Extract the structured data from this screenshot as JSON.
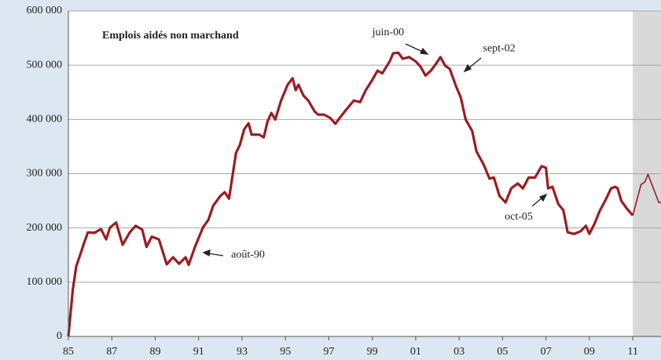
{
  "chart_data": {
    "type": "line",
    "title": "Emplois aidés non marchand",
    "xlim": [
      1985,
      2012.3
    ],
    "ylim": [
      0,
      600000
    ],
    "xticks": [
      {
        "value": 1985,
        "label": "85"
      },
      {
        "value": 1987,
        "label": "87"
      },
      {
        "value": 1989,
        "label": "89"
      },
      {
        "value": 1991,
        "label": "91"
      },
      {
        "value": 1993,
        "label": "93"
      },
      {
        "value": 1995,
        "label": "95"
      },
      {
        "value": 1997,
        "label": "97"
      },
      {
        "value": 1999,
        "label": "99"
      },
      {
        "value": 2001,
        "label": "01"
      },
      {
        "value": 2003,
        "label": "03"
      },
      {
        "value": 2005,
        "label": "05"
      },
      {
        "value": 2007,
        "label": "07"
      },
      {
        "value": 2009,
        "label": "09"
      },
      {
        "value": 2011,
        "label": "11"
      }
    ],
    "yticks": [
      0,
      {
        "value": 100000,
        "label": "100 000"
      },
      {
        "value": 200000,
        "label": "200 000"
      },
      {
        "value": 300000,
        "label": "300 000"
      },
      {
        "value": 400000,
        "label": "400 000"
      },
      {
        "value": 500000,
        "label": "500 000"
      },
      {
        "value": 600000,
        "label": "600 000"
      }
    ],
    "grid": true,
    "shaded_xrange": [
      2011,
      2012.3
    ],
    "shaded_color": "#d9d9d9",
    "series": [
      {
        "color": "#9b1c22",
        "width": 3.2,
        "x": [
          1985.0,
          1985.2,
          1985.36,
          1985.54,
          1985.72,
          1985.9,
          1986.2,
          1986.5,
          1986.74,
          1986.92,
          1987.2,
          1987.5,
          1987.83,
          1988.1,
          1988.4,
          1988.6,
          1988.84,
          1989.17,
          1989.53,
          1989.82,
          1990.1,
          1990.4,
          1990.54,
          1990.83,
          1991.2,
          1991.45,
          1991.67,
          1992.0,
          1992.2,
          1992.4,
          1992.72,
          1992.9,
          1993.1,
          1993.3,
          1993.44,
          1993.8,
          1994.0,
          1994.17,
          1994.35,
          1994.53,
          1994.8,
          1995.1,
          1995.33,
          1995.47,
          1995.6,
          1995.83,
          1996.05,
          1996.34,
          1996.5,
          1996.77,
          1997.06,
          1997.3,
          1997.5,
          1997.8,
          1998.15,
          1998.44,
          1998.7,
          1999.0,
          1999.24,
          1999.46,
          1999.8,
          1999.96,
          2000.2,
          2000.4,
          2000.7,
          2001.0,
          2001.23,
          2001.45,
          2001.7,
          2001.96,
          2002.14,
          2002.36,
          2002.57,
          2002.86,
          2003.08,
          2003.3,
          2003.6,
          2003.8,
          2004.13,
          2004.4,
          2004.6,
          2004.86,
          2005.14,
          2005.4,
          2005.7,
          2005.94,
          2006.2,
          2006.5,
          2006.8,
          2007.0,
          2007.1,
          2007.3,
          2007.57,
          2007.8,
          2008.0,
          2008.3,
          2008.6,
          2008.84,
          2009.0,
          2009.24,
          2009.46,
          2009.75,
          2010.0,
          2010.2,
          2010.3,
          2010.47,
          2010.7,
          2011.0
        ],
        "values": [
          0,
          85000,
          129000,
          150000,
          172000,
          192000,
          191000,
          198000,
          179000,
          201000,
          210000,
          169000,
          192000,
          204000,
          197000,
          165000,
          184000,
          179000,
          133000,
          146000,
          134000,
          146000,
          132000,
          165000,
          201000,
          215000,
          241000,
          259000,
          266000,
          254000,
          338000,
          353000,
          382000,
          393000,
          372000,
          372000,
          367000,
          396000,
          412000,
          400000,
          435000,
          464000,
          476000,
          454000,
          464000,
          444000,
          435000,
          415000,
          409000,
          409000,
          403000,
          392000,
          403000,
          418000,
          435000,
          432000,
          454000,
          473000,
          490000,
          485000,
          507000,
          522000,
          523000,
          512000,
          515000,
          507000,
          497000,
          481000,
          490000,
          504000,
          515000,
          499000,
          493000,
          461000,
          440000,
          400000,
          379000,
          341000,
          317000,
          291000,
          293000,
          259000,
          247000,
          273000,
          282000,
          273000,
          293000,
          293000,
          314000,
          311000,
          273000,
          276000,
          244000,
          233000,
          192000,
          189000,
          194000,
          204000,
          189000,
          208000,
          230000,
          252000,
          273000,
          276000,
          273000,
          250000,
          237000,
          223000
        ]
      },
      {
        "color": "#9b1c22",
        "width": 1.6,
        "x": [
          2011.0,
          2011.38,
          2011.56,
          2011.7,
          2012.2,
          2012.3
        ],
        "values": [
          223000,
          280000,
          285000,
          299000,
          247000,
          247000
        ]
      }
    ],
    "annotations": [
      {
        "text": "juin-00",
        "x": 1999.0,
        "y": 560000
      },
      {
        "text": "sept-02",
        "x": 2004.1,
        "y": 530000
      },
      {
        "text": "oct-05",
        "x": 2005.1,
        "y": 220000
      },
      {
        "text": "août-90",
        "x": 1992.5,
        "y": 150000
      }
    ]
  }
}
